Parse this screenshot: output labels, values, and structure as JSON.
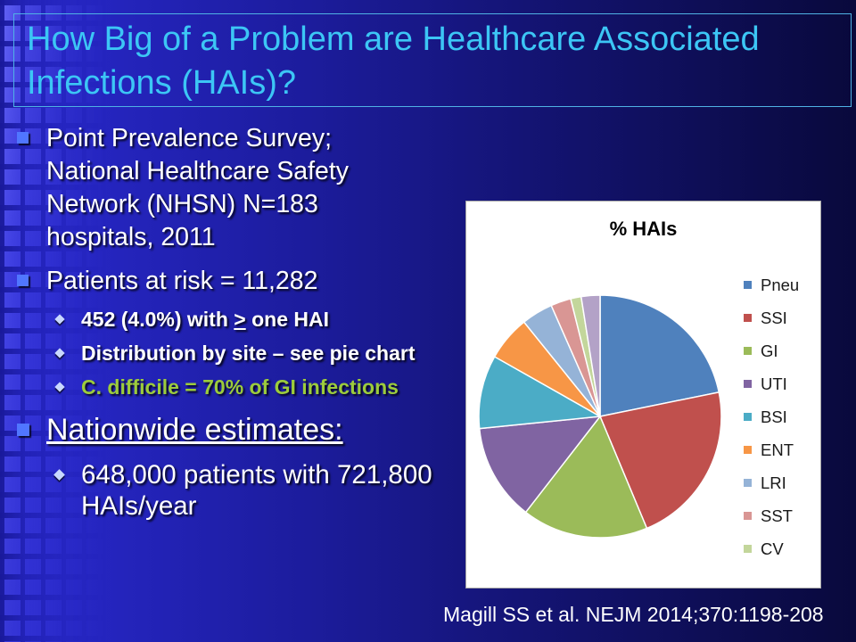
{
  "slide": {
    "title": "How Big of a Problem are Healthcare Associated Infections (HAIs)?",
    "bullets": {
      "survey": "Point Prevalence Survey; National Healthcare Safety Network (NHSN) N=183 hospitals, 2011",
      "patients": "Patients at risk = 11,282",
      "hai_count_lead": "452 (4.0%) with",
      "hai_count_symbol": ">",
      "hai_count_tail": "one HAI",
      "distribution": "Distribution by site – see pie chart",
      "cdiff": "C. difficile = 70% of GI infections",
      "nationwide": "Nationwide estimates:",
      "nationwide_detail": "648,000 patients with 721,800 HAIs/year"
    },
    "citation": "Magill SS et al. NEJM 2014;370:1198-208"
  },
  "icons": {
    "main_bullet": "square-bullet-icon",
    "sub_bullet": "diamond-bullet-icon"
  },
  "theme": {
    "title_color": "#3cc6f5",
    "title_border_color": "#4fb2e4",
    "text_color": "#ffffff",
    "highlight_color": "#9ccc3c",
    "bullet_color": "#5076ff",
    "sub_bullet_color": "#c9d8ff"
  },
  "chart_data": {
    "type": "pie",
    "title": "% HAIs",
    "categories": [
      "Pneu",
      "SSI",
      "GI",
      "UTI",
      "BSI",
      "ENT",
      "LRI",
      "SST",
      "CV",
      ""
    ],
    "values": [
      21.8,
      21.9,
      16.8,
      12.9,
      9.8,
      6.0,
      4.2,
      2.7,
      1.4,
      2.5
    ],
    "colors": [
      "#4f81bd",
      "#c0504d",
      "#9bbb59",
      "#8064a2",
      "#4bacc6",
      "#f79646",
      "#95b3d7",
      "#d99694",
      "#c3d69b",
      "#b3a2c7"
    ],
    "legend_position": "right"
  }
}
